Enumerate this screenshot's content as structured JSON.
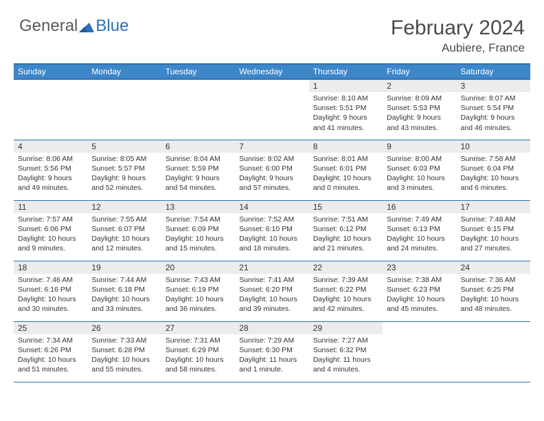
{
  "brand": {
    "part1": "General",
    "part2": "Blue"
  },
  "title": {
    "month": "February 2024",
    "location": "Aubiere, France"
  },
  "colors": {
    "header_bg": "#3d87c9",
    "border": "#2e6fb5",
    "daynum_bg": "#ececec",
    "text": "#333333"
  },
  "weekdays": [
    "Sunday",
    "Monday",
    "Tuesday",
    "Wednesday",
    "Thursday",
    "Friday",
    "Saturday"
  ],
  "weeks": [
    [
      null,
      null,
      null,
      null,
      {
        "n": "1",
        "sunrise": "8:10 AM",
        "sunset": "5:51 PM",
        "day": "9 hours and 41 minutes."
      },
      {
        "n": "2",
        "sunrise": "8:09 AM",
        "sunset": "5:53 PM",
        "day": "9 hours and 43 minutes."
      },
      {
        "n": "3",
        "sunrise": "8:07 AM",
        "sunset": "5:54 PM",
        "day": "9 hours and 46 minutes."
      }
    ],
    [
      {
        "n": "4",
        "sunrise": "8:06 AM",
        "sunset": "5:56 PM",
        "day": "9 hours and 49 minutes."
      },
      {
        "n": "5",
        "sunrise": "8:05 AM",
        "sunset": "5:57 PM",
        "day": "9 hours and 52 minutes."
      },
      {
        "n": "6",
        "sunrise": "8:04 AM",
        "sunset": "5:59 PM",
        "day": "9 hours and 54 minutes."
      },
      {
        "n": "7",
        "sunrise": "8:02 AM",
        "sunset": "6:00 PM",
        "day": "9 hours and 57 minutes."
      },
      {
        "n": "8",
        "sunrise": "8:01 AM",
        "sunset": "6:01 PM",
        "day": "10 hours and 0 minutes."
      },
      {
        "n": "9",
        "sunrise": "8:00 AM",
        "sunset": "6:03 PM",
        "day": "10 hours and 3 minutes."
      },
      {
        "n": "10",
        "sunrise": "7:58 AM",
        "sunset": "6:04 PM",
        "day": "10 hours and 6 minutes."
      }
    ],
    [
      {
        "n": "11",
        "sunrise": "7:57 AM",
        "sunset": "6:06 PM",
        "day": "10 hours and 9 minutes."
      },
      {
        "n": "12",
        "sunrise": "7:55 AM",
        "sunset": "6:07 PM",
        "day": "10 hours and 12 minutes."
      },
      {
        "n": "13",
        "sunrise": "7:54 AM",
        "sunset": "6:09 PM",
        "day": "10 hours and 15 minutes."
      },
      {
        "n": "14",
        "sunrise": "7:52 AM",
        "sunset": "6:10 PM",
        "day": "10 hours and 18 minutes."
      },
      {
        "n": "15",
        "sunrise": "7:51 AM",
        "sunset": "6:12 PM",
        "day": "10 hours and 21 minutes."
      },
      {
        "n": "16",
        "sunrise": "7:49 AM",
        "sunset": "6:13 PM",
        "day": "10 hours and 24 minutes."
      },
      {
        "n": "17",
        "sunrise": "7:48 AM",
        "sunset": "6:15 PM",
        "day": "10 hours and 27 minutes."
      }
    ],
    [
      {
        "n": "18",
        "sunrise": "7:46 AM",
        "sunset": "6:16 PM",
        "day": "10 hours and 30 minutes."
      },
      {
        "n": "19",
        "sunrise": "7:44 AM",
        "sunset": "6:18 PM",
        "day": "10 hours and 33 minutes."
      },
      {
        "n": "20",
        "sunrise": "7:43 AM",
        "sunset": "6:19 PM",
        "day": "10 hours and 36 minutes."
      },
      {
        "n": "21",
        "sunrise": "7:41 AM",
        "sunset": "6:20 PM",
        "day": "10 hours and 39 minutes."
      },
      {
        "n": "22",
        "sunrise": "7:39 AM",
        "sunset": "6:22 PM",
        "day": "10 hours and 42 minutes."
      },
      {
        "n": "23",
        "sunrise": "7:38 AM",
        "sunset": "6:23 PM",
        "day": "10 hours and 45 minutes."
      },
      {
        "n": "24",
        "sunrise": "7:36 AM",
        "sunset": "6:25 PM",
        "day": "10 hours and 48 minutes."
      }
    ],
    [
      {
        "n": "25",
        "sunrise": "7:34 AM",
        "sunset": "6:26 PM",
        "day": "10 hours and 51 minutes."
      },
      {
        "n": "26",
        "sunrise": "7:33 AM",
        "sunset": "6:28 PM",
        "day": "10 hours and 55 minutes."
      },
      {
        "n": "27",
        "sunrise": "7:31 AM",
        "sunset": "6:29 PM",
        "day": "10 hours and 58 minutes."
      },
      {
        "n": "28",
        "sunrise": "7:29 AM",
        "sunset": "6:30 PM",
        "day": "11 hours and 1 minute."
      },
      {
        "n": "29",
        "sunrise": "7:27 AM",
        "sunset": "6:32 PM",
        "day": "11 hours and 4 minutes."
      },
      null,
      null
    ]
  ],
  "labels": {
    "sunrise": "Sunrise:",
    "sunset": "Sunset:",
    "daylight": "Daylight:"
  }
}
